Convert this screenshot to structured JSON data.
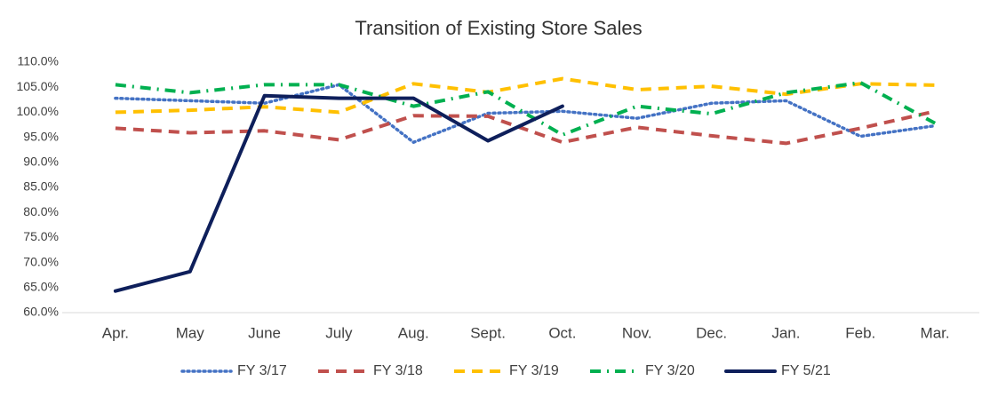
{
  "chart_data": {
    "type": "line",
    "title": "Transition of Existing Store Sales",
    "categories": [
      "Apr.",
      "May",
      "June",
      "July",
      "Aug.",
      "Sept.",
      "Oct.",
      "Nov.",
      "Dec.",
      "Jan.",
      "Feb.",
      "Mar."
    ],
    "series": [
      {
        "name": "FY 3/17",
        "color": "#4472c4",
        "linestyle": "dotted",
        "values": [
          102.8,
          102.3,
          101.8,
          105.5,
          94.0,
          99.8,
          100.2,
          98.8,
          101.8,
          102.3,
          95.2,
          97.3
        ]
      },
      {
        "name": "FY 3/18",
        "color": "#c0504d",
        "linestyle": "dashed",
        "values": [
          96.8,
          95.9,
          96.3,
          94.5,
          99.3,
          99.2,
          94.0,
          97.0,
          95.3,
          93.8,
          96.8,
          100.2
        ]
      },
      {
        "name": "FY 3/19",
        "color": "#ffc000",
        "linestyle": "dashed",
        "values": [
          100.0,
          100.4,
          101.1,
          100.0,
          105.7,
          104.0,
          106.7,
          104.5,
          105.2,
          103.6,
          105.7,
          105.4
        ]
      },
      {
        "name": "FY 3/20",
        "color": "#00b050",
        "linestyle": "dashdot",
        "values": [
          105.5,
          103.9,
          105.5,
          105.5,
          101.2,
          104.1,
          95.5,
          101.2,
          99.7,
          103.9,
          105.9,
          97.8
        ]
      },
      {
        "name": "FY 5/21",
        "color": "#0e1f5b",
        "linestyle": "solid",
        "values": [
          64.3,
          68.2,
          103.3,
          102.8,
          102.8,
          94.3,
          101.2,
          null,
          null,
          null,
          null,
          null
        ]
      }
    ],
    "ylim": [
      60,
      110
    ],
    "yticks": [
      {
        "value": 60,
        "label": "60.0%"
      },
      {
        "value": 65,
        "label": "65.0%"
      },
      {
        "value": 70,
        "label": "70.0%"
      },
      {
        "value": 75,
        "label": "75.0%"
      },
      {
        "value": 80,
        "label": "80.0%"
      },
      {
        "value": 85,
        "label": "85.0%"
      },
      {
        "value": 90,
        "label": "90.0%"
      },
      {
        "value": 95,
        "label": "95.0%"
      },
      {
        "value": 100,
        "label": "100.0%"
      },
      {
        "value": 105,
        "label": "105.0%"
      },
      {
        "value": 110,
        "label": "110.0%"
      }
    ],
    "grid": false,
    "legend": "bottom"
  }
}
